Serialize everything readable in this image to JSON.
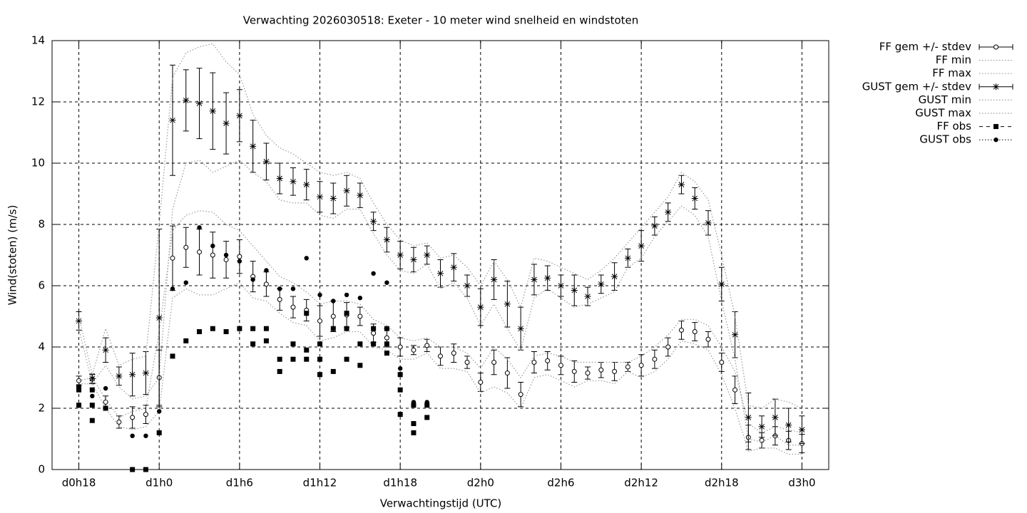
{
  "chart_data": {
    "type": "errorline",
    "title": "Verwachting 2026030518: Exeter - 10 meter wind snelheid en windstoten",
    "xlabel": "Verwachtingstijd (UTC)",
    "ylabel": "Wind(stoten) (m/s)",
    "xlim": [
      16,
      74
    ],
    "ylim": [
      0,
      14
    ],
    "xticks": [
      {
        "value": 18,
        "label": "d0h18"
      },
      {
        "value": 24,
        "label": "d1h0"
      },
      {
        "value": 30,
        "label": "d1h6"
      },
      {
        "value": 36,
        "label": "d1h12"
      },
      {
        "value": 42,
        "label": "d1h18"
      },
      {
        "value": 48,
        "label": "d2h0"
      },
      {
        "value": 54,
        "label": "d2h6"
      },
      {
        "value": 60,
        "label": "d2h12"
      },
      {
        "value": 66,
        "label": "d2h18"
      },
      {
        "value": 72,
        "label": "d3h0"
      }
    ],
    "yticks": [
      0,
      2,
      4,
      6,
      8,
      10,
      12,
      14
    ],
    "grid": true,
    "legend": "outside-right",
    "series": [
      {
        "name": "FF gem +/- stdev",
        "style": "errorbar",
        "marker": "circle",
        "color": "#000000",
        "x": [
          18,
          19,
          20,
          21,
          22,
          23,
          24,
          25,
          26,
          27,
          28,
          29,
          30,
          31,
          32,
          33,
          34,
          35,
          36,
          37,
          38,
          39,
          40,
          41,
          42,
          43,
          44,
          45,
          46,
          47,
          48,
          49,
          50,
          51,
          52,
          53,
          54,
          55,
          56,
          57,
          58,
          59,
          60,
          61,
          62,
          63,
          64,
          65,
          66,
          67,
          68,
          69,
          70,
          71,
          72
        ],
        "values": [
          2.9,
          2.95,
          2.2,
          1.55,
          1.7,
          1.8,
          3.0,
          6.9,
          7.25,
          7.1,
          7.0,
          6.85,
          6.95,
          6.3,
          6.05,
          5.55,
          5.3,
          5.2,
          4.85,
          5.0,
          5.05,
          5.0,
          4.45,
          4.3,
          4.0,
          3.9,
          4.05,
          3.7,
          3.8,
          3.5,
          2.85,
          3.5,
          3.15,
          2.45,
          3.5,
          3.55,
          3.4,
          3.2,
          3.15,
          3.25,
          3.2,
          3.35,
          3.4,
          3.6,
          4.0,
          4.55,
          4.5,
          4.25,
          3.5,
          2.6,
          1.05,
          0.95,
          1.1,
          0.95,
          0.85
        ],
        "errors": [
          0.15,
          0.15,
          0.2,
          0.2,
          0.35,
          0.3,
          0.9,
          1.05,
          0.65,
          0.75,
          0.75,
          0.6,
          0.55,
          0.5,
          0.4,
          0.35,
          0.35,
          0.35,
          0.5,
          0.5,
          0.4,
          0.3,
          0.3,
          0.3,
          0.3,
          0.15,
          0.2,
          0.3,
          0.3,
          0.2,
          0.3,
          0.4,
          0.5,
          0.4,
          0.35,
          0.3,
          0.3,
          0.35,
          0.2,
          0.25,
          0.3,
          0.15,
          0.35,
          0.3,
          0.3,
          0.3,
          0.3,
          0.25,
          0.3,
          0.45,
          0.4,
          0.25,
          0.3,
          0.3,
          0.3
        ]
      },
      {
        "name": "FF min",
        "style": "dotted",
        "color": "#999999",
        "x": [
          18,
          19,
          20,
          21,
          22,
          23,
          24,
          25,
          26,
          27,
          28,
          29,
          30,
          31,
          32,
          33,
          34,
          35,
          36,
          37,
          38,
          39,
          40,
          41,
          42,
          43,
          44,
          45,
          46,
          47,
          48,
          49,
          50,
          51,
          52,
          53,
          54,
          55,
          56,
          57,
          58,
          59,
          60,
          61,
          62,
          63,
          64,
          65,
          66,
          67,
          68,
          69,
          70,
          71,
          72
        ],
        "values": [
          2.8,
          2.8,
          2.0,
          1.4,
          1.3,
          1.4,
          1.9,
          5.6,
          5.9,
          5.7,
          5.7,
          5.9,
          6.1,
          5.6,
          5.5,
          5.1,
          4.8,
          4.7,
          4.2,
          4.3,
          4.5,
          4.5,
          4.0,
          3.9,
          3.6,
          3.6,
          3.8,
          3.3,
          3.3,
          3.2,
          2.5,
          2.7,
          2.5,
          2.0,
          3.0,
          3.1,
          2.9,
          2.7,
          2.9,
          2.9,
          2.8,
          3.2,
          3.0,
          3.2,
          3.6,
          4.2,
          4.1,
          3.9,
          3.1,
          2.0,
          0.6,
          0.7,
          0.7,
          0.5,
          0.5
        ]
      },
      {
        "name": "FF max",
        "style": "dotted",
        "color": "#999999",
        "x": [
          18,
          19,
          20,
          21,
          22,
          23,
          24,
          25,
          26,
          27,
          28,
          29,
          30,
          31,
          32,
          33,
          34,
          35,
          36,
          37,
          38,
          39,
          40,
          41,
          42,
          43,
          44,
          45,
          46,
          47,
          48,
          49,
          50,
          51,
          52,
          53,
          54,
          55,
          56,
          57,
          58,
          59,
          60,
          61,
          62,
          63,
          64,
          65,
          66,
          67,
          68,
          69,
          70,
          71,
          72
        ],
        "values": [
          2.9,
          3.0,
          2.3,
          1.7,
          1.9,
          2.0,
          4.5,
          7.8,
          8.3,
          8.45,
          8.4,
          8.0,
          7.8,
          7.3,
          6.8,
          6.3,
          6.1,
          5.8,
          5.4,
          5.5,
          5.5,
          5.4,
          4.9,
          4.7,
          4.3,
          4.2,
          4.3,
          4.0,
          4.0,
          3.8,
          3.3,
          4.0,
          3.6,
          3.0,
          3.7,
          3.8,
          3.7,
          3.5,
          3.5,
          3.5,
          3.5,
          3.5,
          3.7,
          4.0,
          4.4,
          4.9,
          4.9,
          4.7,
          4.0,
          3.2,
          1.5,
          1.2,
          1.4,
          1.3,
          1.2
        ]
      },
      {
        "name": "GUST gem +/- stdev",
        "style": "errorbar",
        "marker": "star",
        "color": "#000000",
        "x": [
          18,
          19,
          20,
          21,
          22,
          23,
          24,
          25,
          26,
          27,
          28,
          29,
          30,
          31,
          32,
          33,
          34,
          35,
          36,
          37,
          38,
          39,
          40,
          41,
          42,
          43,
          44,
          45,
          46,
          47,
          48,
          49,
          50,
          51,
          52,
          53,
          54,
          55,
          56,
          57,
          58,
          59,
          60,
          61,
          62,
          63,
          64,
          65,
          66,
          67,
          68,
          69,
          70,
          71,
          72
        ],
        "values": [
          4.85,
          2.97,
          3.9,
          3.05,
          3.1,
          3.15,
          4.95,
          11.4,
          12.05,
          11.95,
          11.7,
          11.3,
          11.55,
          10.55,
          10.05,
          9.5,
          9.4,
          9.3,
          8.9,
          8.85,
          9.1,
          8.95,
          8.1,
          7.5,
          7.0,
          6.85,
          7.0,
          6.4,
          6.6,
          6.0,
          5.3,
          6.2,
          5.4,
          4.6,
          6.2,
          6.25,
          6.0,
          5.85,
          5.65,
          6.05,
          6.3,
          6.9,
          7.3,
          7.95,
          8.4,
          9.3,
          8.85,
          8.05,
          6.05,
          4.4,
          1.7,
          1.4,
          1.7,
          1.45,
          1.3
        ],
        "errors": [
          0.3,
          0.15,
          0.4,
          0.3,
          0.7,
          0.7,
          2.9,
          1.8,
          1.0,
          1.15,
          1.25,
          1.0,
          0.85,
          0.85,
          0.6,
          0.5,
          0.45,
          0.5,
          0.5,
          0.5,
          0.5,
          0.4,
          0.3,
          0.4,
          0.45,
          0.4,
          0.3,
          0.45,
          0.45,
          0.35,
          0.6,
          0.65,
          0.75,
          0.7,
          0.5,
          0.4,
          0.35,
          0.5,
          0.3,
          0.3,
          0.45,
          0.3,
          0.5,
          0.3,
          0.3,
          0.3,
          0.35,
          0.4,
          0.55,
          0.75,
          0.8,
          0.35,
          0.6,
          0.55,
          0.45
        ]
      },
      {
        "name": "GUST min",
        "style": "dotted",
        "color": "#999999",
        "x": [
          18,
          19,
          20,
          21,
          22,
          23,
          24,
          25,
          26,
          27,
          28,
          29,
          30,
          31,
          32,
          33,
          34,
          35,
          36,
          37,
          38,
          39,
          40,
          41,
          42,
          43,
          44,
          45,
          46,
          47,
          48,
          49,
          50,
          51,
          52,
          53,
          54,
          55,
          56,
          57,
          58,
          59,
          60,
          61,
          62,
          63,
          64,
          65,
          66,
          67,
          68,
          69,
          70,
          71,
          72
        ],
        "values": [
          4.6,
          2.8,
          3.4,
          2.7,
          2.3,
          2.4,
          3.0,
          8.5,
          10.0,
          10.1,
          9.7,
          9.9,
          10.1,
          9.7,
          9.4,
          8.8,
          8.7,
          8.7,
          8.3,
          8.2,
          8.5,
          8.5,
          7.7,
          7.0,
          6.5,
          6.4,
          6.7,
          5.9,
          6.1,
          5.6,
          4.7,
          5.4,
          4.6,
          3.9,
          5.6,
          5.9,
          5.6,
          5.3,
          5.4,
          5.6,
          5.8,
          6.6,
          6.9,
          7.6,
          8.1,
          8.6,
          8.3,
          7.6,
          5.5,
          3.6,
          1.0,
          0.9,
          1.1,
          0.8,
          0.8
        ]
      },
      {
        "name": "GUST max",
        "style": "dotted",
        "color": "#999999",
        "x": [
          18,
          19,
          20,
          21,
          22,
          23,
          24,
          25,
          26,
          27,
          28,
          29,
          30,
          31,
          32,
          33,
          34,
          35,
          36,
          37,
          38,
          39,
          40,
          41,
          42,
          43,
          44,
          45,
          46,
          47,
          48,
          49,
          50,
          51,
          52,
          53,
          54,
          55,
          56,
          57,
          58,
          59,
          60,
          61,
          62,
          63,
          64,
          65,
          66,
          67,
          68,
          69,
          70,
          71,
          72
        ],
        "values": [
          5.0,
          3.1,
          4.6,
          3.4,
          3.6,
          3.7,
          8.0,
          12.8,
          13.6,
          13.8,
          13.9,
          13.3,
          12.9,
          11.6,
          10.9,
          10.5,
          10.3,
          10.0,
          9.7,
          9.6,
          9.7,
          9.5,
          8.7,
          8.0,
          7.5,
          7.3,
          7.4,
          6.9,
          7.0,
          6.6,
          6.0,
          6.8,
          6.2,
          5.3,
          6.9,
          6.8,
          6.6,
          6.4,
          6.2,
          6.5,
          6.9,
          7.4,
          7.9,
          8.4,
          8.9,
          9.7,
          9.4,
          8.8,
          7.0,
          5.0,
          2.1,
          2.0,
          2.3,
          2.2,
          2.0
        ]
      },
      {
        "name": "FF obs",
        "style": "points",
        "marker": "square",
        "color": "#000000",
        "x": [
          18,
          18,
          18,
          19,
          19,
          19,
          20,
          22,
          23,
          24,
          25,
          26,
          27,
          28,
          29,
          30,
          31,
          31,
          32,
          32,
          33,
          33,
          34,
          34,
          35,
          35,
          35,
          36,
          36,
          36,
          37,
          37,
          38,
          38,
          38,
          39,
          39,
          40,
          40,
          41,
          41,
          41,
          42,
          42,
          42,
          43,
          43,
          43,
          44,
          44
        ],
        "values": [
          2.7,
          2.6,
          2.1,
          2.6,
          2.1,
          1.6,
          2.0,
          0,
          0,
          1.2,
          3.7,
          4.2,
          4.5,
          4.6,
          4.5,
          4.6,
          4.6,
          4.1,
          4.6,
          4.2,
          3.6,
          3.2,
          4.1,
          3.6,
          5.1,
          3.9,
          3.6,
          4.1,
          3.6,
          3.1,
          4.6,
          3.2,
          5.1,
          4.6,
          3.6,
          4.1,
          3.4,
          4.6,
          4.1,
          4.6,
          4.1,
          3.8,
          3.1,
          2.6,
          1.8,
          2.1,
          1.5,
          1.2,
          2.1,
          1.7
        ]
      },
      {
        "name": "GUST obs",
        "style": "points",
        "marker": "dot",
        "color": "#000000",
        "x": [
          18,
          18,
          19,
          20,
          22,
          23,
          24,
          25,
          26,
          27,
          28,
          29,
          30,
          31,
          32,
          33,
          34,
          35,
          36,
          37,
          38,
          39,
          40,
          41,
          42,
          43,
          43,
          44,
          44
        ],
        "values": [
          2.7,
          2.6,
          2.4,
          2.65,
          1.1,
          1.1,
          1.9,
          5.9,
          6.1,
          7.9,
          7.3,
          7.0,
          6.8,
          6.2,
          6.5,
          5.9,
          5.9,
          6.9,
          5.7,
          5.5,
          5.7,
          5.6,
          6.4,
          6.1,
          3.3,
          2.2,
          2.1,
          2.2,
          2.1
        ]
      }
    ]
  }
}
